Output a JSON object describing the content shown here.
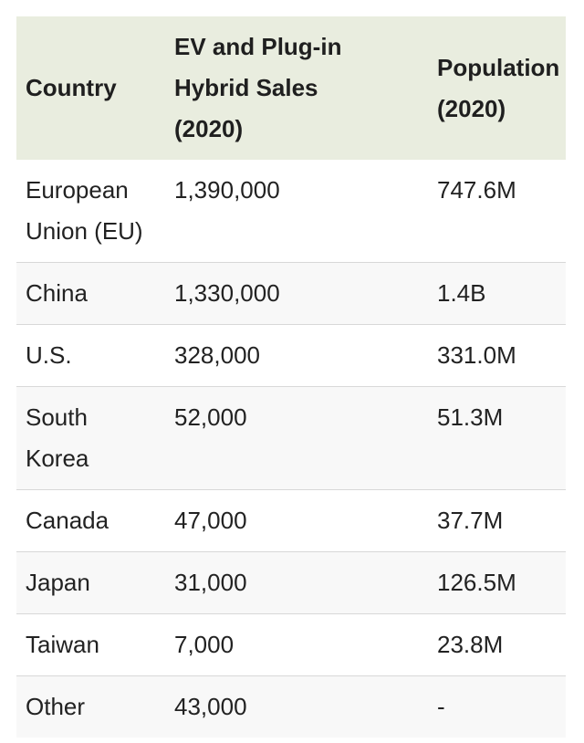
{
  "table": {
    "headers": [
      [
        "Country"
      ],
      [
        "EV and Plug-in",
        "Hybrid Sales",
        "(2020)"
      ],
      [
        "Population",
        "(2020)"
      ]
    ],
    "rows": [
      {
        "country": [
          "European",
          "Union (EU)"
        ],
        "sales": "1,390,000",
        "population": "747.6M"
      },
      {
        "country": [
          "China"
        ],
        "sales": "1,330,000",
        "population": "1.4B"
      },
      {
        "country": [
          "U.S."
        ],
        "sales": "328,000",
        "population": "331.0M"
      },
      {
        "country": [
          "South",
          "Korea"
        ],
        "sales": "52,000",
        "population": "51.3M"
      },
      {
        "country": [
          "Canada"
        ],
        "sales": "47,000",
        "population": "37.7M"
      },
      {
        "country": [
          "Japan"
        ],
        "sales": "31,000",
        "population": "126.5M"
      },
      {
        "country": [
          "Taiwan"
        ],
        "sales": "7,000",
        "population": "23.8M"
      },
      {
        "country": [
          "Other"
        ],
        "sales": "43,000",
        "population": "-"
      }
    ]
  }
}
